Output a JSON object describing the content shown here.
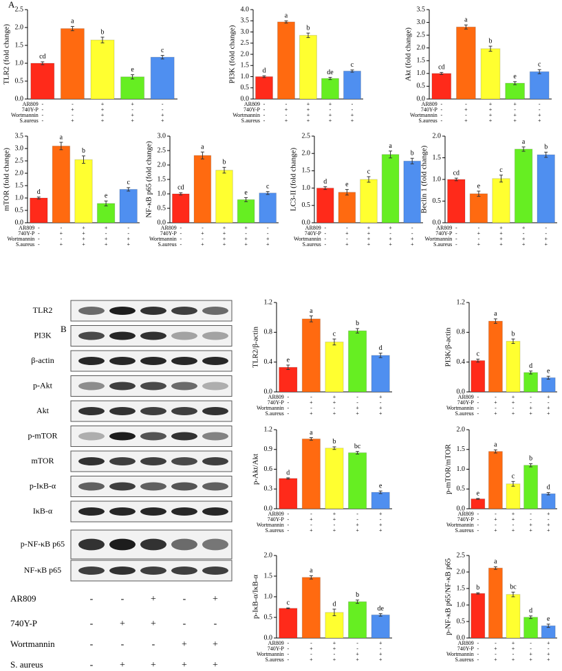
{
  "panel_labels": [
    "A",
    "B"
  ],
  "chart_data": [
    {
      "type": "bar",
      "y_label": "TLR2 (fold change)",
      "ylim": [
        0,
        2.5
      ],
      "yticks": [
        {
          "value": 0,
          "label": "0.0"
        },
        0.5,
        {
          "value": 1,
          "label": "1.0"
        },
        1.5,
        {
          "value": 2,
          "label": "2.0"
        },
        2.5
      ],
      "values": [
        1.0,
        1.97,
        1.65,
        0.62,
        1.17
      ],
      "errors": [
        0.04,
        0.06,
        0.08,
        0.06,
        0.05
      ],
      "letters": [
        "cd",
        "a",
        "b",
        "e",
        "c"
      ],
      "colors": [
        "#ff2a1a",
        "#ff6a10",
        "#ffff30",
        "#66ee22",
        "#4f8ff0"
      ],
      "treatment_labels": [
        "AR809",
        "740Y-P",
        "Wortmannin",
        "S.aureus"
      ],
      "treatments": [
        [
          "-",
          "-",
          "+",
          "+",
          "-"
        ],
        [
          "-",
          "+",
          "+",
          "-",
          "-"
        ],
        [
          "-",
          "-",
          "+",
          "+",
          "+"
        ],
        [
          "-",
          "+",
          "+",
          "+",
          "+"
        ]
      ]
    },
    {
      "type": "bar",
      "y_label": "PI3K (fold change)",
      "ylim": [
        0,
        4
      ],
      "yticks": [
        {
          "value": 0,
          "label": "0.0"
        },
        0.5,
        {
          "value": 1,
          "label": "1.0"
        },
        1.5,
        {
          "value": 2,
          "label": "2.0"
        },
        2.5,
        {
          "value": 3,
          "label": "3.0"
        },
        3.5,
        {
          "value": 4,
          "label": "4.0"
        }
      ],
      "values": [
        1.0,
        3.45,
        2.85,
        0.92,
        1.25
      ],
      "errors": [
        0.04,
        0.05,
        0.1,
        0.05,
        0.05
      ],
      "letters": [
        "d",
        "a",
        "b",
        "de",
        "c"
      ],
      "colors": [
        "#ff2a1a",
        "#ff6a10",
        "#ffff30",
        "#66ee22",
        "#4f8ff0"
      ],
      "treatment_labels": [
        "AR809",
        "740Y-P",
        "Wortmannin",
        "S.aureus"
      ],
      "treatments": [
        [
          "-",
          "-",
          "+",
          "+",
          "-"
        ],
        [
          "-",
          "+",
          "+",
          "-",
          "-"
        ],
        [
          "-",
          "-",
          "+",
          "+",
          "+"
        ],
        [
          "-",
          "+",
          "+",
          "+",
          "+"
        ]
      ]
    },
    {
      "type": "bar",
      "y_label": "Akt (fold change)",
      "ylim": [
        0,
        3.5
      ],
      "yticks": [
        {
          "value": 0,
          "label": "0.0"
        },
        0.5,
        {
          "value": 1,
          "label": "1.0"
        },
        1.5,
        {
          "value": 2,
          "label": "2.0"
        },
        2.5,
        {
          "value": 3,
          "label": "3.0"
        },
        3.5
      ],
      "values": [
        1.0,
        2.82,
        1.97,
        0.62,
        1.07
      ],
      "errors": [
        0.04,
        0.08,
        0.1,
        0.06,
        0.08
      ],
      "letters": [
        "cd",
        "a",
        "b",
        "e",
        "c"
      ],
      "colors": [
        "#ff2a1a",
        "#ff6a10",
        "#ffff30",
        "#66ee22",
        "#4f8ff0"
      ],
      "treatment_labels": [
        "AR809",
        "740Y-P",
        "Wortmannin",
        "S.aureus"
      ],
      "treatments": [
        [
          "-",
          "-",
          "+",
          "+",
          "-"
        ],
        [
          "-",
          "+",
          "+",
          "-",
          "-"
        ],
        [
          "-",
          "-",
          "+",
          "+",
          "+"
        ],
        [
          "-",
          "+",
          "+",
          "+",
          "+"
        ]
      ]
    },
    {
      "type": "bar",
      "y_label": "mTOR (fold change)",
      "ylim": [
        0,
        3.5
      ],
      "yticks": [
        {
          "value": 0,
          "label": "0.0"
        },
        0.5,
        {
          "value": 1,
          "label": "1.0"
        },
        1.5,
        {
          "value": 2,
          "label": "2.0"
        },
        2.5,
        {
          "value": 3,
          "label": "3.0"
        },
        3.5
      ],
      "values": [
        1.0,
        3.1,
        2.55,
        0.78,
        1.35
      ],
      "errors": [
        0.04,
        0.15,
        0.15,
        0.1,
        0.07
      ],
      "letters": [
        "d",
        "a",
        "b",
        "e",
        "c"
      ],
      "colors": [
        "#ff2a1a",
        "#ff6a10",
        "#ffff30",
        "#66ee22",
        "#4f8ff0"
      ],
      "treatment_labels": [
        "AR809",
        "740Y-P",
        "Wortmannin",
        "S.aureus"
      ],
      "treatments": [
        [
          "-",
          "-",
          "+",
          "+",
          "-"
        ],
        [
          "-",
          "+",
          "+",
          "-",
          "-"
        ],
        [
          "-",
          "-",
          "+",
          "+",
          "+"
        ],
        [
          "-",
          "+",
          "+",
          "+",
          "+"
        ]
      ]
    },
    {
      "type": "bar",
      "y_label": "NF-κB p65 (fold change)",
      "ylim": [
        0,
        3
      ],
      "yticks": [
        {
          "value": 0,
          "label": "0.0"
        },
        0.5,
        {
          "value": 1,
          "label": "1.0"
        },
        1.5,
        {
          "value": 2,
          "label": "2.0"
        },
        2.5,
        {
          "value": 3,
          "label": "3.0"
        }
      ],
      "values": [
        1.0,
        2.33,
        1.82,
        0.8,
        1.03
      ],
      "errors": [
        0.04,
        0.12,
        0.1,
        0.07,
        0.05
      ],
      "letters": [
        "cd",
        "a",
        "b",
        "e",
        "c"
      ],
      "colors": [
        "#ff2a1a",
        "#ff6a10",
        "#ffff30",
        "#66ee22",
        "#4f8ff0"
      ],
      "treatment_labels": [
        "AR809",
        "740Y-P",
        "Wortmannin",
        "S.aureus"
      ],
      "treatments": [
        [
          "-",
          "-",
          "+",
          "+",
          "-"
        ],
        [
          "-",
          "+",
          "+",
          "-",
          "-"
        ],
        [
          "-",
          "-",
          "+",
          "+",
          "+"
        ],
        [
          "-",
          "+",
          "+",
          "+",
          "+"
        ]
      ]
    },
    {
      "type": "bar",
      "y_label": "LC3-II (fold change)",
      "ylim": [
        0,
        2.5
      ],
      "yticks": [
        {
          "value": 0,
          "label": "0.0"
        },
        0.5,
        {
          "value": 1,
          "label": "1.0"
        },
        1.5,
        {
          "value": 2,
          "label": "2.0"
        },
        2.5
      ],
      "values": [
        1.0,
        0.88,
        1.25,
        1.97,
        1.78
      ],
      "errors": [
        0.04,
        0.08,
        0.08,
        0.1,
        0.08
      ],
      "letters": [
        "d",
        "e",
        "c",
        "a",
        "b"
      ],
      "colors": [
        "#ff2a1a",
        "#ff6a10",
        "#ffff30",
        "#66ee22",
        "#4f8ff0"
      ],
      "treatment_labels": [
        "AR809",
        "740Y-P",
        "Wortmannin",
        "S.aureus"
      ],
      "treatments": [
        [
          "-",
          "-",
          "+",
          "+",
          "-"
        ],
        [
          "-",
          "+",
          "+",
          "-",
          "-"
        ],
        [
          "-",
          "-",
          "+",
          "+",
          "+"
        ],
        [
          "-",
          "+",
          "+",
          "+",
          "+"
        ]
      ]
    },
    {
      "type": "bar",
      "y_label": "Beclin 1 (fold change)",
      "ylim": [
        0,
        2
      ],
      "yticks": [
        {
          "value": 0,
          "label": "0.0"
        },
        0.5,
        {
          "value": 1,
          "label": "1.0"
        },
        1.5,
        {
          "value": 2,
          "label": "2.0"
        }
      ],
      "values": [
        1.0,
        0.67,
        1.02,
        1.7,
        1.57
      ],
      "errors": [
        0.03,
        0.06,
        0.08,
        0.05,
        0.06
      ],
      "letters": [
        "cd",
        "e",
        "c",
        "a",
        "b"
      ],
      "colors": [
        "#ff2a1a",
        "#ff6a10",
        "#ffff30",
        "#66ee22",
        "#4f8ff0"
      ],
      "treatment_labels": [
        "AR809",
        "740Y-P",
        "Wortmannin",
        "S.aureus"
      ],
      "treatments": [
        [
          "-",
          "-",
          "+",
          "+",
          "-"
        ],
        [
          "-",
          "+",
          "+",
          "-",
          "-"
        ],
        [
          "-",
          "-",
          "+",
          "+",
          "+"
        ],
        [
          "-",
          "+",
          "+",
          "+",
          "+"
        ]
      ]
    },
    {
      "type": "bar",
      "y_label": "TLR2/β-actin",
      "ylim": [
        0,
        1.2
      ],
      "yticks": [
        {
          "value": 0,
          "label": "0.0"
        },
        0.4,
        0.8,
        1.2
      ],
      "values": [
        0.33,
        0.98,
        0.67,
        0.82,
        0.49
      ],
      "errors": [
        0.03,
        0.04,
        0.04,
        0.03,
        0.03
      ],
      "letters": [
        "e",
        "a",
        "c",
        "b",
        "d"
      ],
      "colors": [
        "#ff2a1a",
        "#ff6a10",
        "#ffff30",
        "#66ee22",
        "#4f8ff0"
      ],
      "treatment_labels": [
        "AR809",
        "740Y-P",
        "Wortmannin",
        "S.aureus"
      ],
      "treatments": [
        [
          "-",
          "-",
          "+",
          "-",
          "+"
        ],
        [
          "-",
          "+",
          "+",
          "-",
          "-"
        ],
        [
          "-",
          "-",
          "-",
          "+",
          "+"
        ],
        [
          "-",
          "+",
          "+",
          "+",
          "+"
        ]
      ]
    },
    {
      "type": "bar",
      "y_label": "PI3K/β-actin",
      "ylim": [
        0,
        1.2
      ],
      "yticks": [
        {
          "value": 0,
          "label": "0.0"
        },
        0.4,
        0.8,
        1.2
      ],
      "values": [
        0.42,
        0.95,
        0.68,
        0.26,
        0.19
      ],
      "errors": [
        0.02,
        0.03,
        0.03,
        0.02,
        0.02
      ],
      "letters": [
        "c",
        "a",
        "b",
        "d",
        "e"
      ],
      "colors": [
        "#ff2a1a",
        "#ff6a10",
        "#ffff30",
        "#66ee22",
        "#4f8ff0"
      ],
      "treatment_labels": [
        "AR809",
        "740Y-P",
        "Wortmannin",
        "S.aureus"
      ],
      "treatments": [
        [
          "-",
          "-",
          "+",
          "-",
          "+"
        ],
        [
          "-",
          "+",
          "+",
          "-",
          "-"
        ],
        [
          "-",
          "-",
          "-",
          "+",
          "+"
        ],
        [
          "-",
          "+",
          "+",
          "+",
          "+"
        ]
      ]
    },
    {
      "type": "bar",
      "y_label": "p-Akt/Akt",
      "ylim": [
        0,
        1.2
      ],
      "yticks": [
        {
          "value": 0,
          "label": "0.0"
        },
        0.3,
        0.6,
        0.9,
        1.2
      ],
      "values": [
        0.46,
        1.06,
        0.92,
        0.85,
        0.25
      ],
      "errors": [
        0.01,
        0.02,
        0.02,
        0.02,
        0.02
      ],
      "letters": [
        "d",
        "a",
        "b",
        "bc",
        "e"
      ],
      "colors": [
        "#ff2a1a",
        "#ff6a10",
        "#ffff30",
        "#66ee22",
        "#4f8ff0"
      ],
      "treatment_labels": [
        "AR809",
        "740Y-P",
        "Wortmannin",
        "S.aureus"
      ],
      "treatments": [
        [
          "-",
          "-",
          "+",
          "-",
          "+"
        ],
        [
          "-",
          "+",
          "+",
          "-",
          "-"
        ],
        [
          "-",
          "-",
          "-",
          "+",
          "+"
        ],
        [
          "-",
          "+",
          "+",
          "+",
          "+"
        ]
      ]
    },
    {
      "type": "bar",
      "y_label": "p-mTOR/mTOR",
      "ylim": [
        0,
        2
      ],
      "yticks": [
        {
          "value": 0,
          "label": "0.0"
        },
        0.5,
        {
          "value": 1,
          "label": "1.0"
        },
        1.5,
        {
          "value": 2,
          "label": "2.0"
        }
      ],
      "values": [
        0.25,
        1.45,
        0.63,
        1.1,
        0.38
      ],
      "errors": [
        0.01,
        0.04,
        0.06,
        0.04,
        0.03
      ],
      "letters": [
        "e",
        "a",
        "c",
        "b",
        "d"
      ],
      "colors": [
        "#ff2a1a",
        "#ff6a10",
        "#ffff30",
        "#66ee22",
        "#4f8ff0"
      ],
      "treatment_labels": [
        "AR809",
        "740Y-P",
        "Wortmannin",
        "S.aureus"
      ],
      "treatments": [
        [
          "-",
          "-",
          "+",
          "-",
          "+"
        ],
        [
          "-",
          "+",
          "+",
          "-",
          "-"
        ],
        [
          "-",
          "-",
          "-",
          "+",
          "+"
        ],
        [
          "-",
          "+",
          "+",
          "+",
          "+"
        ]
      ]
    },
    {
      "type": "bar",
      "y_label": "p-IκB-α/IκB-α",
      "ylim": [
        0,
        2
      ],
      "yticks": [
        {
          "value": 0,
          "label": "0.0"
        },
        0.5,
        {
          "value": 1,
          "label": "1.0"
        },
        1.5,
        {
          "value": 2,
          "label": "2.0"
        }
      ],
      "values": [
        0.72,
        1.47,
        0.62,
        0.88,
        0.56
      ],
      "errors": [
        0.01,
        0.04,
        0.08,
        0.04,
        0.03
      ],
      "letters": [
        "c",
        "a",
        "d",
        "b",
        "de"
      ],
      "colors": [
        "#ff2a1a",
        "#ff6a10",
        "#ffff30",
        "#66ee22",
        "#4f8ff0"
      ],
      "treatment_labels": [
        "AR809",
        "740Y-P",
        "Wortmannin",
        "S.aureus"
      ],
      "treatments": [
        [
          "-",
          "-",
          "+",
          "-",
          "+"
        ],
        [
          "-",
          "+",
          "+",
          "-",
          "-"
        ],
        [
          "-",
          "-",
          "-",
          "+",
          "+"
        ],
        [
          "-",
          "+",
          "+",
          "+",
          "+"
        ]
      ]
    },
    {
      "type": "bar",
      "y_label": "p-NF-κB p65/NF-κB p65",
      "ylim": [
        0,
        2.5
      ],
      "yticks": [
        {
          "value": 0,
          "label": "0.0"
        },
        0.5,
        {
          "value": 1,
          "label": "1.0"
        },
        1.5,
        {
          "value": 2,
          "label": "2.0"
        },
        2.5
      ],
      "values": [
        1.35,
        2.12,
        1.32,
        0.63,
        0.37
      ],
      "errors": [
        0.02,
        0.04,
        0.07,
        0.04,
        0.05
      ],
      "letters": [
        "b",
        "a",
        "bc",
        "d",
        "e"
      ],
      "colors": [
        "#ff2a1a",
        "#ff6a10",
        "#ffff30",
        "#66ee22",
        "#4f8ff0"
      ],
      "treatment_labels": [
        "AR809",
        "740Y-P",
        "Wortmannin",
        "S.aureus"
      ],
      "treatments": [
        [
          "-",
          "-",
          "+",
          "-",
          "+"
        ],
        [
          "-",
          "+",
          "+",
          "-",
          "-"
        ],
        [
          "-",
          "-",
          "-",
          "+",
          "+"
        ],
        [
          "-",
          "+",
          "+",
          "+",
          "+"
        ]
      ]
    }
  ],
  "blot": {
    "rows": [
      "TLR2",
      "PI3K",
      "β-actin",
      "p-Akt",
      "Akt",
      "p-mTOR",
      "mTOR",
      "p-IκB-α",
      "IκB-α",
      "p-NF-κB p65",
      "NF-κB p65"
    ],
    "treatment_labels": [
      "AR809",
      "740Y-P",
      "Wortmannin",
      "S. aureus"
    ],
    "treatments": [
      [
        "-",
        "-",
        "+",
        "-",
        "+"
      ],
      [
        "-",
        "+",
        "+",
        "-",
        "-"
      ],
      [
        "-",
        "-",
        "-",
        "+",
        "+"
      ],
      [
        "-",
        "+",
        "+",
        "+",
        "+"
      ]
    ]
  }
}
